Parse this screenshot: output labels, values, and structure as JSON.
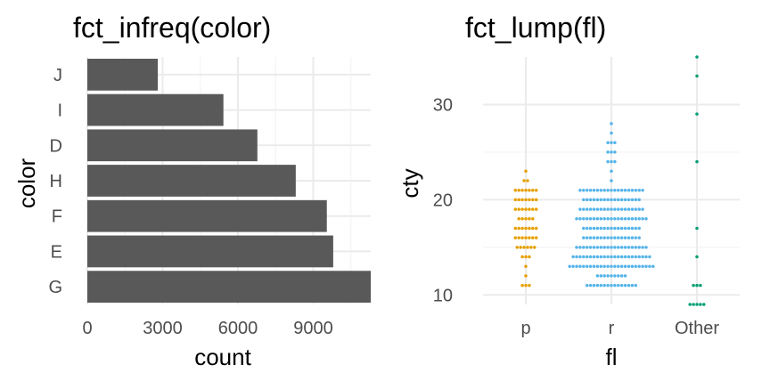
{
  "chart_data": [
    {
      "type": "bar",
      "orientation": "horizontal",
      "title": "fct_infreq(color)",
      "xlabel": "count",
      "ylabel": "color",
      "categories": [
        "G",
        "E",
        "F",
        "H",
        "D",
        "I",
        "J"
      ],
      "values": [
        11292,
        9797,
        9542,
        8304,
        6775,
        5422,
        2808
      ],
      "xlim": [
        0,
        11292
      ],
      "x_ticks": [
        "0",
        "3000",
        "6000",
        "9000"
      ],
      "bar_color": "#595959",
      "grid": true
    },
    {
      "type": "scatter",
      "subtype": "dotplot",
      "title": "fct_lump(fl)",
      "xlabel": "fl",
      "ylabel": "cty",
      "categories": [
        "p",
        "r",
        "Other"
      ],
      "ylim": [
        9,
        35
      ],
      "y_ticks": [
        "10",
        "20",
        "30"
      ],
      "grid": true,
      "series": [
        {
          "category": "p",
          "color": "#E69F00",
          "bins": [
            {
              "y": 11,
              "count": 3
            },
            {
              "y": 12,
              "count": 1
            },
            {
              "y": 13,
              "count": 1
            },
            {
              "y": 14,
              "count": 3
            },
            {
              "y": 15,
              "count": 6
            },
            {
              "y": 16,
              "count": 7
            },
            {
              "y": 17,
              "count": 7
            },
            {
              "y": 18,
              "count": 5
            },
            {
              "y": 19,
              "count": 7
            },
            {
              "y": 20,
              "count": 7
            },
            {
              "y": 21,
              "count": 7
            },
            {
              "y": 22,
              "count": 2
            },
            {
              "y": 23,
              "count": 1
            }
          ]
        },
        {
          "category": "r",
          "color": "#56B4E9",
          "bins": [
            {
              "y": 11,
              "count": 15
            },
            {
              "y": 12,
              "count": 9
            },
            {
              "y": 13,
              "count": 25
            },
            {
              "y": 14,
              "count": 23
            },
            {
              "y": 15,
              "count": 21
            },
            {
              "y": 16,
              "count": 17
            },
            {
              "y": 17,
              "count": 17
            },
            {
              "y": 18,
              "count": 21
            },
            {
              "y": 19,
              "count": 19
            },
            {
              "y": 20,
              "count": 17
            },
            {
              "y": 21,
              "count": 19
            },
            {
              "y": 22,
              "count": 1
            },
            {
              "y": 23,
              "count": 1
            },
            {
              "y": 24,
              "count": 3
            },
            {
              "y": 25,
              "count": 3
            },
            {
              "y": 26,
              "count": 3
            },
            {
              "y": 27,
              "count": 1
            },
            {
              "y": 28,
              "count": 1
            }
          ]
        },
        {
          "category": "Other",
          "color": "#009E73",
          "bins": [
            {
              "y": 9,
              "count": 5
            },
            {
              "y": 11,
              "count": 3
            },
            {
              "y": 14,
              "count": 1
            },
            {
              "y": 17,
              "count": 1
            },
            {
              "y": 24,
              "count": 1
            },
            {
              "y": 29,
              "count": 1
            },
            {
              "y": 33,
              "count": 1
            },
            {
              "y": 35,
              "count": 1
            }
          ]
        }
      ]
    }
  ]
}
